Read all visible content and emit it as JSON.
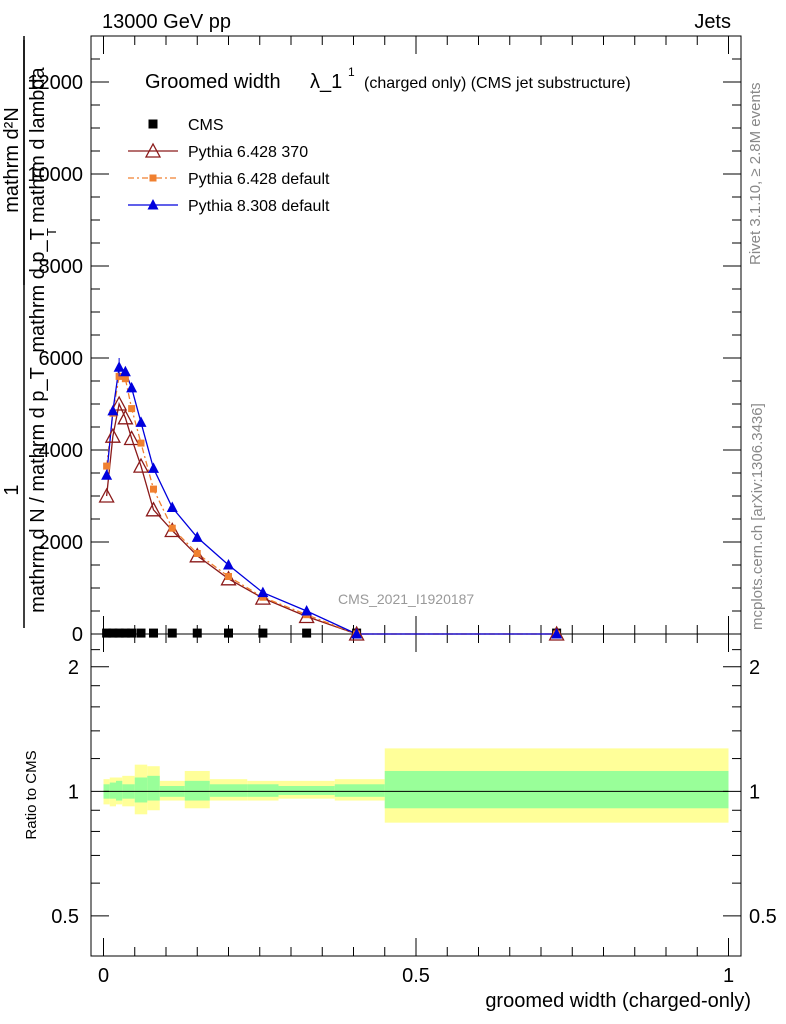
{
  "header": {
    "energy": "13000 GeV pp",
    "category": "Jets"
  },
  "sidebar": {
    "rivet": "Rivet 3.1.10, ≥ 2.8M events",
    "mcplots": "mcplots.cern.ch [arXiv:1306.3436]"
  },
  "main": {
    "title_main": "Groomed width",
    "title_symbol": "λ_1",
    "title_sup": "1",
    "title_note": "(charged only) (CMS jet substructure)",
    "watermark": "CMS_2021_I1920187",
    "ylabel_num": "mathrm d²N",
    "ylabel_den": "mathrm d p_T mathrm d lambda",
    "ylabel_outer_num": "1",
    "ylabel_outer_den": "mathrm d N / mathrm d p_T",
    "ylabel_sub": "T",
    "xlabel": "groomed width (charged-only)",
    "ratio_ylabel": "Ratio to CMS",
    "colors": {
      "pythia6_370": "#8b1a1a",
      "pythia6_default": "#f08030",
      "pythia8": "#0000dd",
      "band_inner": "#99ff99",
      "band_outer": "#ffff99"
    }
  },
  "chart_data": [
    {
      "type": "line",
      "panel": "main",
      "xlim": [
        -0.02,
        1.02
      ],
      "ylim": [
        0,
        13000
      ],
      "yticks": [
        0,
        2000,
        4000,
        6000,
        8000,
        10000,
        12000
      ],
      "ytick_labels": [
        "0",
        "2000",
        "4000",
        "6000",
        "8000",
        "10000",
        "12000"
      ],
      "xticks": [
        0,
        0.5,
        1
      ],
      "xtick_labels": [
        "0",
        "0.5",
        "1"
      ],
      "legend_position": "top-left",
      "series": [
        {
          "name": "CMS",
          "marker": "square",
          "color": "#000000",
          "x": [
            0.005,
            0.015,
            0.025,
            0.035,
            0.045,
            0.06,
            0.08,
            0.11,
            0.15,
            0.2,
            0.255,
            0.325,
            0.405,
            0.725
          ],
          "y": [
            20,
            20,
            20,
            20,
            20,
            20,
            20,
            20,
            20,
            20,
            20,
            20,
            20,
            20
          ]
        },
        {
          "name": "Pythia 6.428 370",
          "marker": "triangle-open",
          "color": "#8b1a1a",
          "x": [
            0.005,
            0.015,
            0.025,
            0.035,
            0.045,
            0.06,
            0.08,
            0.11,
            0.15,
            0.2,
            0.255,
            0.325,
            0.405,
            0.725
          ],
          "y": [
            3000,
            4300,
            5000,
            4700,
            4250,
            3650,
            2700,
            2250,
            1700,
            1200,
            780,
            380,
            0,
            0
          ]
        },
        {
          "name": "Pythia 6.428 default",
          "marker": "square-small",
          "color": "#f08030",
          "x": [
            0.005,
            0.015,
            0.025,
            0.035,
            0.045,
            0.06,
            0.08,
            0.11,
            0.15,
            0.2,
            0.255,
            0.325,
            0.405,
            0.725
          ],
          "y": [
            3650,
            4800,
            5600,
            5550,
            4900,
            4150,
            3150,
            2300,
            1750,
            1250,
            800,
            420,
            0,
            0
          ]
        },
        {
          "name": "Pythia 8.308 default",
          "marker": "triangle-filled",
          "color": "#0000dd",
          "x": [
            0.005,
            0.015,
            0.025,
            0.035,
            0.045,
            0.06,
            0.08,
            0.11,
            0.15,
            0.2,
            0.255,
            0.325,
            0.405,
            0.725
          ],
          "y": [
            3450,
            4850,
            5800,
            5700,
            5350,
            4600,
            3600,
            2750,
            2100,
            1500,
            900,
            500,
            0,
            0
          ]
        }
      ]
    },
    {
      "type": "line",
      "panel": "ratio",
      "xlim": [
        -0.02,
        1.02
      ],
      "ylim_log": [
        0.4,
        2.4
      ],
      "yticks": [
        0.5,
        1,
        2
      ],
      "ytick_labels": [
        "0.5",
        "1",
        "2"
      ],
      "xticks": [
        0,
        0.5,
        1
      ],
      "xtick_labels": [
        "0",
        "0.5",
        "1"
      ],
      "reference_line": 1,
      "band_edges": [
        0,
        0.01,
        0.02,
        0.03,
        0.05,
        0.07,
        0.09,
        0.13,
        0.17,
        0.23,
        0.28,
        0.37,
        0.45,
        1.0
      ],
      "band_inner": [
        [
          0.96,
          1.04
        ],
        [
          0.96,
          1.05
        ],
        [
          0.95,
          1.06
        ],
        [
          0.96,
          1.04
        ],
        [
          0.94,
          1.08
        ],
        [
          0.95,
          1.09
        ],
        [
          0.97,
          1.03
        ],
        [
          0.95,
          1.06
        ],
        [
          0.97,
          1.04
        ],
        [
          0.97,
          1.04
        ],
        [
          0.98,
          1.03
        ],
        [
          0.97,
          1.04
        ],
        [
          0.91,
          1.12
        ]
      ],
      "band_outer": [
        [
          0.93,
          1.07
        ],
        [
          0.92,
          1.08
        ],
        [
          0.93,
          1.08
        ],
        [
          0.92,
          1.09
        ],
        [
          0.88,
          1.16
        ],
        [
          0.9,
          1.15
        ],
        [
          0.95,
          1.06
        ],
        [
          0.91,
          1.12
        ],
        [
          0.95,
          1.07
        ],
        [
          0.95,
          1.06
        ],
        [
          0.96,
          1.06
        ],
        [
          0.95,
          1.07
        ],
        [
          0.84,
          1.27
        ]
      ]
    }
  ]
}
